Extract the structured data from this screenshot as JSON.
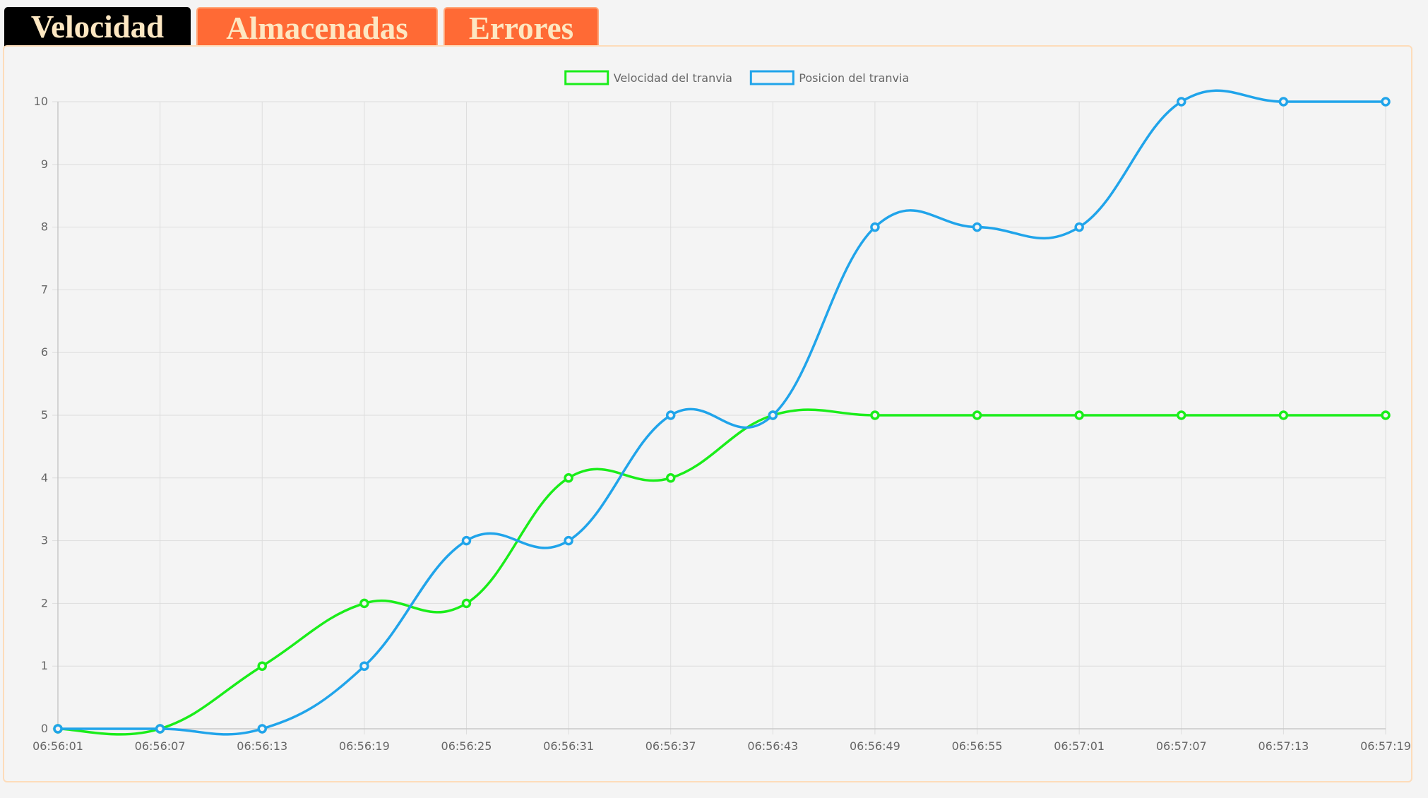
{
  "tabs": [
    {
      "label": "Velocidad",
      "active": true
    },
    {
      "label": "Almacenadas",
      "active": false
    },
    {
      "label": "Errores",
      "active": false
    }
  ],
  "colors": {
    "tab_active_bg": "#000000",
    "tab_inactive_bg": "#ff6a35",
    "tab_text": "#fde7c2",
    "panel_border": "#fddcba",
    "grid": "#dddddd"
  },
  "chart_data": {
    "type": "line",
    "title": "",
    "xlabel": "",
    "ylabel": "",
    "categories": [
      "06:56:01",
      "06:56:07",
      "06:56:13",
      "06:56:19",
      "06:56:25",
      "06:56:31",
      "06:56:37",
      "06:56:43",
      "06:56:49",
      "06:56:55",
      "06:57:01",
      "06:57:07",
      "06:57:13",
      "06:57:19"
    ],
    "series": [
      {
        "name": "Velocidad del tranvia",
        "color": "#1aed1a",
        "values": [
          0,
          0,
          1,
          2,
          2,
          4,
          4,
          5,
          5,
          5,
          5,
          5,
          5,
          5
        ]
      },
      {
        "name": "Posicion del tranvia",
        "color": "#20a4ea",
        "values": [
          0,
          0,
          0,
          1,
          3,
          3,
          5,
          5,
          8,
          8,
          8,
          10,
          10,
          10
        ]
      }
    ],
    "ylim": [
      0,
      10
    ],
    "yticks": [
      "0",
      "1",
      "2",
      "3",
      "4",
      "5",
      "6",
      "7",
      "8",
      "9",
      "10"
    ],
    "grid": true,
    "legend_position": "top"
  }
}
